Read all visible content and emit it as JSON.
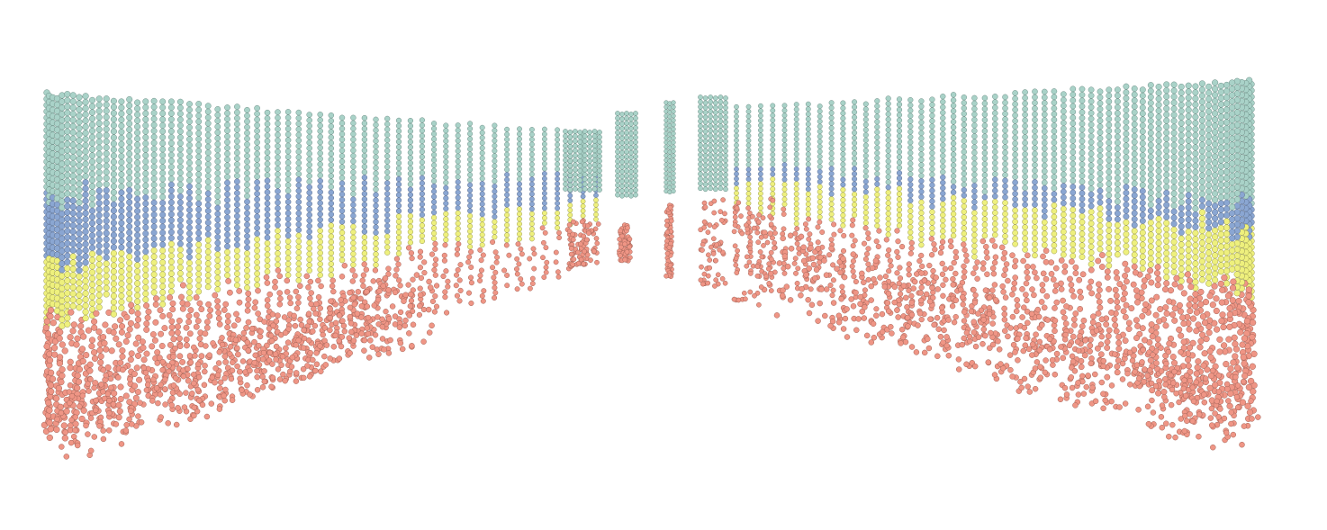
{
  "scene": {
    "background": "#ffffff",
    "bands": [
      {
        "name": "top-band",
        "color": "#a9d2c8",
        "stroke": "#6e8f87"
      },
      {
        "name": "upper-middle-band",
        "color": "#8aa6d2",
        "stroke": "#5d6f8f"
      },
      {
        "name": "lower-middle-band",
        "color": "#eef07d",
        "stroke": "#9a9a52"
      },
      {
        "name": "bottom-band",
        "color": "#ef9585",
        "stroke": "#a36357"
      }
    ],
    "walls": [
      {
        "name": "left-wall-cloud",
        "side": "left"
      },
      {
        "name": "right-wall-cloud",
        "side": "right"
      },
      {
        "name": "far-left-panel-cloud",
        "side": "far-left"
      },
      {
        "name": "center-column-cloud",
        "side": "center"
      },
      {
        "name": "far-right-panel-cloud",
        "side": "far-right"
      }
    ]
  }
}
